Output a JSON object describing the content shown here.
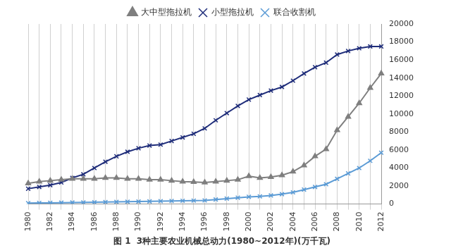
{
  "chart_data": {
    "type": "line",
    "title": "图 1  3种主要农业机械总动力(1980~2012年)(万千瓦)",
    "categories": [
      "1980",
      null,
      "1982",
      null,
      "1984",
      null,
      "1986",
      null,
      "1988",
      null,
      "1990",
      null,
      "1992",
      null,
      "1994",
      null,
      "1996",
      null,
      "1998",
      null,
      "2000",
      null,
      "2002",
      null,
      "2004",
      null,
      "2006",
      null,
      "2008",
      null,
      "2010",
      null,
      "2012"
    ],
    "series": [
      {
        "name": "大中型拖拉机",
        "color": "#7f7f7f",
        "marker": "triangle",
        "values": [
          2300,
          2500,
          2600,
          2700,
          2800,
          2800,
          2800,
          2900,
          2900,
          2800,
          2800,
          2700,
          2700,
          2600,
          2500,
          2450,
          2400,
          2500,
          2600,
          2700,
          3100,
          2900,
          3000,
          3200,
          3600,
          4300,
          5300,
          6100,
          8200,
          9700,
          11200,
          12900,
          14500
        ]
      },
      {
        "name": "小型拖拉机",
        "color": "#1f2d7a",
        "marker": "x",
        "values": [
          1700,
          1900,
          2100,
          2400,
          2900,
          3300,
          4000,
          4700,
          5300,
          5800,
          6200,
          6500,
          6600,
          7000,
          7400,
          7800,
          8400,
          9300,
          10100,
          10900,
          11600,
          12100,
          12600,
          13000,
          13700,
          14500,
          15200,
          15700,
          16600,
          17000,
          17300,
          17500,
          17500
        ]
      },
      {
        "name": "联合收割机",
        "color": "#5b9bd5",
        "marker": "x",
        "values": [
          100,
          120,
          130,
          150,
          170,
          180,
          200,
          220,
          240,
          260,
          280,
          300,
          320,
          340,
          360,
          380,
          400,
          500,
          600,
          700,
          800,
          850,
          950,
          1100,
          1300,
          1600,
          1900,
          2200,
          2800,
          3400,
          4000,
          4800,
          5700
        ]
      }
    ],
    "ylim": [
      0,
      20000
    ],
    "yticks": [
      0,
      2000,
      4000,
      6000,
      8000,
      10000,
      12000,
      14000,
      16000,
      18000,
      20000
    ],
    "grid": true,
    "legend": "top"
  }
}
